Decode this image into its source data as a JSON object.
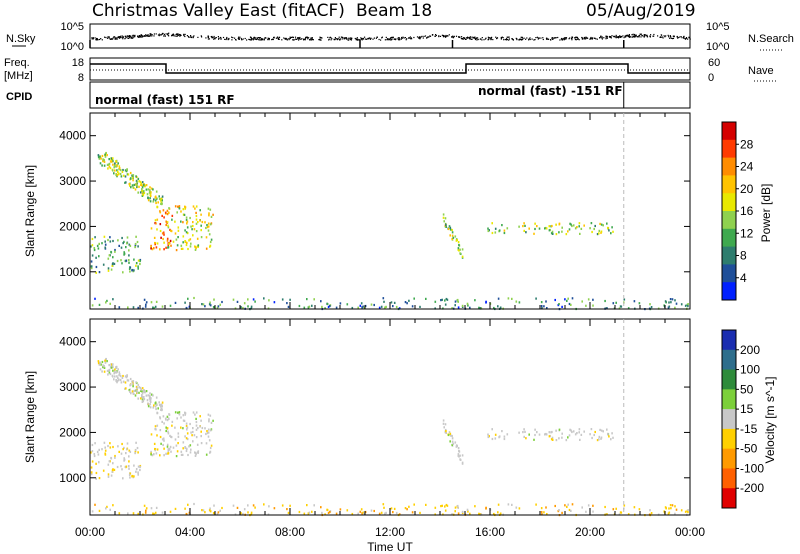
{
  "header": {
    "station_title": "Christmas Valley East (fitACF)",
    "beam": "Beam 18",
    "date": "05/Aug/2019"
  },
  "aux": {
    "nsky_label": "N.Sky",
    "nsearch_label": "N.Search",
    "freq_label": "Freq.",
    "freq_unit": "[MHz]",
    "nave_label": "Nave",
    "cpid_label": "CPID",
    "noise_ticks": [
      "10^5",
      "10^0"
    ],
    "noise_ticks_right": [
      "10^5",
      "10^0"
    ],
    "freq_ticks": [
      "18",
      "8"
    ],
    "nave_ticks": [
      "60",
      "0"
    ],
    "cpid_segments": [
      "normal (fast) 151 RF",
      "normal (fast) -151 RF"
    ],
    "cpid_change_hour": 21.35
  },
  "axes": {
    "xlabel": "Time UT",
    "xticks": [
      "00:00",
      "04:00",
      "08:00",
      "12:00",
      "16:00",
      "20:00",
      "00:00"
    ],
    "ylabel": "Slant Range [km]",
    "yticks": [
      1000,
      2000,
      3000,
      4000
    ],
    "ylim": [
      180,
      4500
    ],
    "xlim_hours": [
      0,
      24
    ]
  },
  "colorbars": {
    "power": {
      "label": "Power [dB]",
      "ticks": [
        "28",
        "24",
        "20",
        "16",
        "12",
        "8",
        "4"
      ],
      "colors": [
        "#d40000",
        "#ff3a00",
        "#ff8c00",
        "#ffc300",
        "#e8e800",
        "#8fd14f",
        "#3fa94f",
        "#2e7d6e",
        "#1f4f99",
        "#0020ff"
      ]
    },
    "velocity": {
      "label": "Velocity [m s^-1]",
      "ticks": [
        "200",
        "100",
        "50",
        "15",
        "-15",
        "-50",
        "-100",
        "-200"
      ],
      "colors": [
        "#1a2db0",
        "#2e6e8c",
        "#2e8b3a",
        "#7ccf3a",
        "#c8c8c8",
        "#ffd000",
        "#ff9a00",
        "#ff6000",
        "#e00000"
      ]
    }
  },
  "chart_data": {
    "type": "heatmap",
    "title": "Christmas Valley East (fitACF)",
    "xlabel": "Time UT",
    "ylabel": "Slant Range [km]",
    "ylim": [
      180,
      4500
    ],
    "panels": [
      {
        "name": "Power",
        "unit": "dB",
        "range": [
          0,
          30
        ]
      },
      {
        "name": "Velocity",
        "unit": "m s^-1",
        "range": [
          -200,
          200
        ]
      }
    ],
    "scatter_regions": [
      {
        "hours": [
          0.3,
          2.9
        ],
        "range_km": [
          2400,
          3600
        ],
        "power_db": 14,
        "velocity": 0
      },
      {
        "hours": [
          2.4,
          3.3
        ],
        "range_km": [
          1500,
          2400
        ],
        "power_db": 24,
        "velocity": 0
      },
      {
        "hours": [
          3.0,
          4.9
        ],
        "range_km": [
          1500,
          2500
        ],
        "power_db": 16,
        "velocity": 0
      },
      {
        "hours": [
          0.0,
          2.0
        ],
        "range_km": [
          1000,
          1800
        ],
        "power_db": 10,
        "velocity": -10
      },
      {
        "hours": [
          14.1,
          14.9
        ],
        "range_km": [
          1400,
          2200
        ],
        "power_db": 14,
        "velocity": 0
      },
      {
        "hours": [
          15.8,
          21.0
        ],
        "range_km": [
          1850,
          2100
        ],
        "power_db": 14,
        "velocity": 0
      },
      {
        "hours": [
          0.0,
          24.0
        ],
        "range_km": [
          180,
          450
        ],
        "power_db": 8,
        "velocity": -30
      }
    ]
  }
}
